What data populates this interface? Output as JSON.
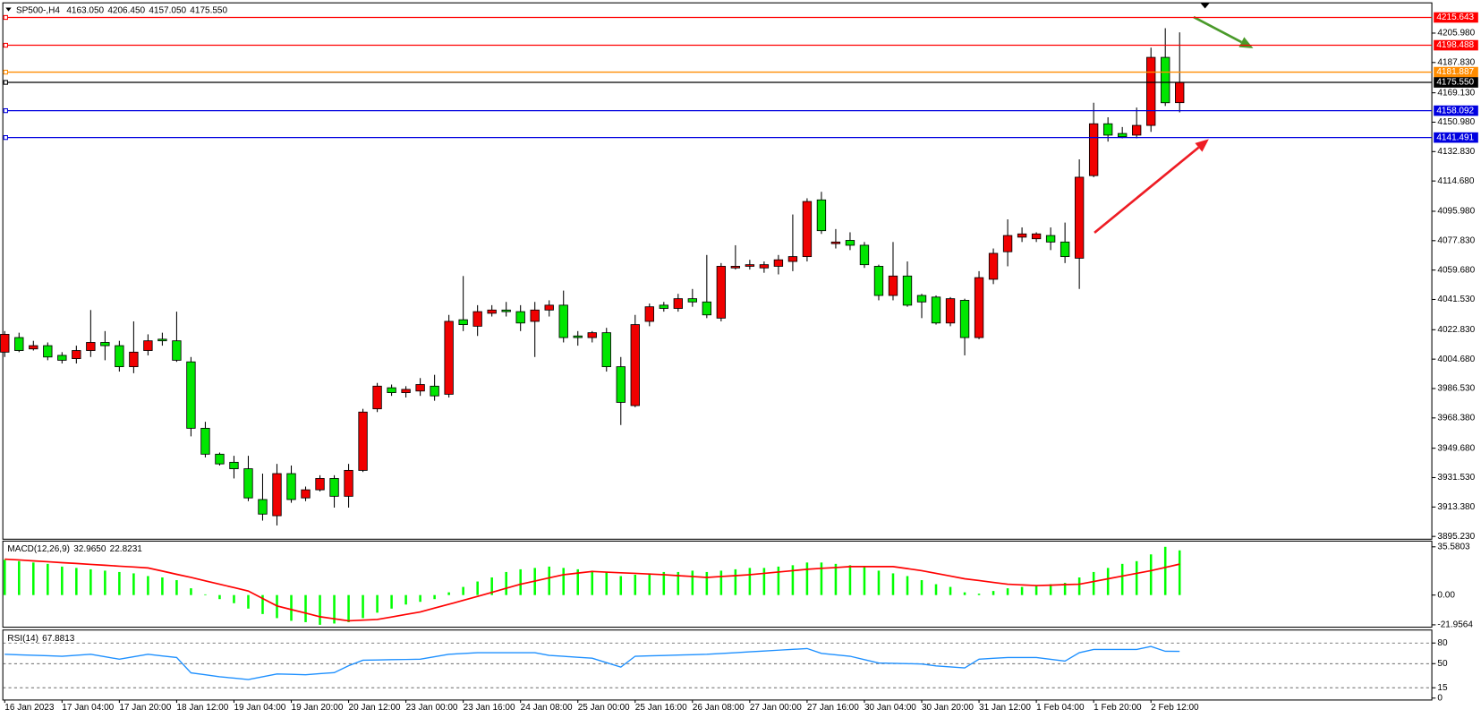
{
  "chart_data": [
    {
      "type": "candlestick",
      "title": "SP500-,H4",
      "header_values": [
        {
          "value": 4163.05,
          "label": "4163.050"
        },
        {
          "value": 4206.45,
          "label": "4206.450"
        },
        {
          "value": 4157.05,
          "label": "4157.050"
        },
        {
          "value": 4175.55,
          "label": "4175.550"
        }
      ],
      "categories": [
        "16 Jan 2023",
        null,
        null,
        null,
        "17 Jan 04:00",
        null,
        null,
        null,
        "17 Jan 20:00",
        null,
        null,
        null,
        "18 Jan 12:00",
        null,
        null,
        null,
        "19 Jan 04:00",
        null,
        null,
        null,
        "19 Jan 20:00",
        null,
        null,
        null,
        "20 Jan 12:00",
        null,
        null,
        null,
        "23 Jan 00:00",
        null,
        null,
        null,
        "23 Jan 16:00",
        null,
        null,
        null,
        "24 Jan 08:00",
        null,
        null,
        null,
        "25 Jan 00:00",
        null,
        null,
        null,
        "25 Jan 16:00",
        null,
        null,
        null,
        "26 Jan 08:00",
        null,
        null,
        null,
        "27 Jan 00:00",
        null,
        null,
        null,
        "27 Jan 16:00",
        null,
        null,
        null,
        "30 Jan 04:00",
        null,
        null,
        null,
        "30 Jan 20:00",
        null,
        null,
        null,
        "31 Jan 12:00",
        null,
        null,
        null,
        "1 Feb 04:00",
        null,
        null,
        null,
        "1 Feb 20:00",
        null,
        null,
        null,
        "2 Feb 12:00",
        null,
        null
      ],
      "open": [
        4009,
        4018,
        4011,
        4013,
        4007,
        4005,
        4010,
        4015,
        4013,
        4000,
        4010,
        4017,
        4016,
        4003,
        3962,
        3946,
        3941,
        3937,
        3918,
        3908,
        3934,
        3919,
        3924,
        3931,
        3920,
        3936,
        3974,
        3987,
        3984,
        3985,
        3988,
        3983,
        4029,
        4025,
        4033,
        4035,
        4034,
        4028,
        4035,
        4038,
        4019,
        4018,
        4021,
        4000,
        3976,
        4028,
        4038,
        4036,
        4042,
        4040,
        4030,
        4061,
        4062,
        4061,
        4062,
        4065,
        4068,
        4103,
        4076,
        4078,
        4075,
        4062,
        4044,
        4056,
        4044,
        4043,
        4027,
        4041,
        4018,
        4054,
        4071,
        4080,
        4079,
        4081,
        4077,
        4067,
        4118,
        4150,
        4144,
        4143,
        4149,
        4191,
        4163.05
      ],
      "high": [
        4022,
        4021,
        4016,
        4015,
        4009,
        4013,
        4035,
        4022,
        4016,
        4028,
        4020,
        4021,
        4034,
        4006,
        3966,
        3947,
        3945,
        3945,
        3934,
        3940,
        3939,
        3926,
        3933,
        3933,
        3940,
        3974,
        3990,
        3989,
        3988,
        3993,
        3995,
        4032,
        4056,
        4038,
        4038,
        4040,
        4038,
        4040,
        4041,
        4047,
        4022,
        4022,
        4024,
        4006,
        4032,
        4039,
        4040,
        4045,
        4048,
        4069,
        4064,
        4075,
        4066,
        4065,
        4069,
        4094,
        4104,
        4108,
        4085,
        4083,
        4077,
        4063,
        4077,
        4065,
        4045,
        4044,
        4043,
        4042,
        4059,
        4073,
        4091,
        4086,
        4083,
        4086,
        4089,
        4128,
        4163,
        4154,
        4148,
        4160,
        4197,
        4209,
        4206.45
      ],
      "low": [
        4006,
        4009,
        4010,
        4004,
        4002,
        4002,
        4006,
        4004,
        3997,
        3996,
        4007,
        4013,
        4003,
        3957,
        3944,
        3939,
        3931,
        3917,
        3905,
        3902,
        3916,
        3917,
        3923,
        3913,
        3913,
        3935,
        3972,
        3982,
        3981,
        3982,
        3979,
        3981,
        4022,
        4019,
        4031,
        4031,
        4022,
        4006,
        4031,
        4015,
        4013,
        4015,
        3997,
        3964,
        3975,
        4025,
        4034,
        4034,
        4037,
        4030,
        4028,
        4060,
        4060,
        4058,
        4057,
        4059,
        4065,
        4082,
        4073,
        4072,
        4061,
        4041,
        4041,
        4037,
        4030,
        4026,
        4025,
        4007,
        4017,
        4051,
        4062,
        4077,
        4077,
        4072,
        4064,
        4048,
        4117,
        4139,
        4141,
        4141,
        4145,
        4161,
        4157.05
      ],
      "close": [
        4020,
        4010,
        4013,
        4006,
        4004,
        4010,
        4015,
        4013,
        4000,
        4009,
        4016,
        4016,
        4004,
        3962,
        3946,
        3940,
        3937,
        3919,
        3909,
        3934,
        3918,
        3924,
        3931,
        3920,
        3936,
        3972,
        3988,
        3984,
        3986,
        3989,
        3982,
        4028,
        4026,
        4034,
        4035,
        4034,
        4027,
        4035,
        4038,
        4018,
        4018,
        4021,
        4000,
        3978,
        4026,
        4037,
        4036,
        4042,
        4040,
        4032,
        4062,
        4062,
        4063,
        4063,
        4066,
        4068,
        4102,
        4084,
        4077,
        4075,
        4063,
        4044,
        4056,
        4038,
        4040,
        4027,
        4042,
        4018,
        4055,
        4070,
        4081,
        4082,
        4082,
        4077,
        4068,
        4117,
        4150,
        4143,
        4142,
        4149,
        4191,
        4163,
        4175.55
      ],
      "up_color": "#f00000",
      "down_color": "#00e600",
      "ylim": [
        3893.5,
        4223.5
      ],
      "yticks": [
        {
          "value": 4205.98,
          "label": "4205.980"
        },
        {
          "value": 4187.83,
          "label": "4187.830"
        },
        {
          "value": 4169.13,
          "label": "4169.130"
        },
        {
          "value": 4150.98,
          "label": "4150.980"
        },
        {
          "value": 4132.83,
          "label": "4132.830"
        },
        {
          "value": 4114.68,
          "label": "4114.680"
        },
        {
          "value": 4095.98,
          "label": "4095.980"
        },
        {
          "value": 4077.83,
          "label": "4077.830"
        },
        {
          "value": 4059.68,
          "label": "4059.680"
        },
        {
          "value": 4041.53,
          "label": "4041.530"
        },
        {
          "value": 4022.83,
          "label": "4022.830"
        },
        {
          "value": 4004.68,
          "label": "4004.680"
        },
        {
          "value": 3986.53,
          "label": "3986.530"
        },
        {
          "value": 3968.38,
          "label": "3968.380"
        },
        {
          "value": 3949.68,
          "label": "3949.680"
        },
        {
          "value": 3931.53,
          "label": "3931.530"
        },
        {
          "value": 3913.38,
          "label": "3913.380"
        },
        {
          "value": 3895.23,
          "label": "3895.230"
        }
      ],
      "levels": [
        {
          "value": 4215.643,
          "color": "#ff0000"
        },
        {
          "value": 4198.488,
          "color": "#ff0000"
        },
        {
          "value": 4181.887,
          "color": "#ff8c00"
        },
        {
          "value": 4175.55,
          "label": "4175.550",
          "color": "#000000"
        },
        {
          "value": 4158.092,
          "color": "#0000e0"
        },
        {
          "value": 4141.491,
          "color": "#0000e0"
        }
      ]
    },
    {
      "type": "macd",
      "title": "MACD(12,26,9)",
      "header_values": [
        {
          "value": 32.965,
          "label": "32.9650"
        },
        22.8231
      ],
      "histogram": {
        "color": "#00ff00",
        "values": [
          26,
          25,
          24,
          23,
          21,
          20,
          19,
          18,
          17,
          16,
          14,
          13,
          11,
          5,
          0.5,
          -3,
          -6,
          -10,
          -14,
          -17,
          -19,
          -20,
          -21.9564,
          -21,
          -20,
          -17,
          -13,
          -10,
          -7,
          -5,
          -3,
          2,
          6,
          10,
          13,
          17,
          19,
          20,
          21,
          20,
          19,
          18,
          17,
          14,
          15,
          16,
          17,
          17,
          18,
          17,
          18,
          19,
          20,
          20,
          21,
          22,
          24,
          24,
          23,
          22,
          21,
          18,
          16,
          14,
          11,
          8,
          6,
          2,
          1,
          3,
          5,
          6,
          7,
          8,
          9,
          13,
          17,
          20,
          23,
          25,
          30,
          35.5803,
          32.965
        ]
      },
      "signal": {
        "color": "#ff0000",
        "values": [
          26.5,
          25.9,
          25.2,
          24.6,
          23.9,
          23.3,
          22.6,
          22.0,
          21.3,
          20.7,
          20,
          17.7,
          15.3,
          13,
          10.5,
          8,
          5.5,
          3,
          -2.5,
          -8,
          -10.7,
          -13.3,
          -16,
          -17.5,
          -19,
          -18.5,
          -18,
          -16.2,
          -14.3,
          -12.5,
          -9.6,
          -6.8,
          -3.9,
          -1,
          2,
          5,
          8,
          10.3,
          12.7,
          15,
          16.2,
          17.4,
          16.9,
          16.4,
          16,
          15.5,
          15,
          14.3,
          13.7,
          13,
          13.7,
          14.3,
          15,
          16,
          17,
          18,
          19,
          19.7,
          20.3,
          21,
          21,
          21,
          21,
          19.5,
          18,
          16,
          14,
          12,
          10.7,
          9.3,
          8,
          7.5,
          7,
          7.3,
          7.7,
          8,
          10,
          12,
          14,
          16,
          18,
          20.4,
          22.8231
        ]
      },
      "ylim": [
        -23.7,
        39.1
      ],
      "yticks": [
        35.5803,
        {
          "value": 0,
          "label": "0.00"
        },
        -21.9564
      ]
    },
    {
      "type": "rsi",
      "title": "RSI(14)",
      "header_values": [
        67.8813
      ],
      "color": "#1e90ff",
      "values": [
        63.6,
        62.9,
        62.2,
        61.5,
        60.8,
        62.2,
        63.6,
        60.1,
        56.5,
        60.1,
        63.6,
        61.3,
        59,
        36.7,
        33.9,
        31,
        29,
        27,
        31,
        35,
        34.5,
        34,
        35.5,
        37,
        47,
        55,
        55.4,
        55.8,
        56.1,
        56.5,
        60.1,
        63.6,
        64.8,
        66,
        66,
        66,
        66,
        66,
        62,
        60.7,
        59.3,
        58,
        51.5,
        45,
        60.8,
        61.4,
        61.9,
        62.5,
        63,
        63.6,
        64.8,
        66,
        67.2,
        68.4,
        69.6,
        70.8,
        72,
        65,
        62.9,
        60.8,
        55.9,
        51,
        50.5,
        50,
        49.5,
        46.7,
        45.3,
        43.8,
        56.5,
        57.8,
        59,
        59,
        59,
        56.4,
        53.7,
        66,
        70.6,
        70.6,
        70.6,
        70.6,
        75,
        68,
        67.8813
      ],
      "ylim": [
        -2.8,
        97.5
      ],
      "yticks": [
        80,
        50,
        15,
        0
      ],
      "levels": [
        80,
        50,
        15
      ]
    }
  ]
}
